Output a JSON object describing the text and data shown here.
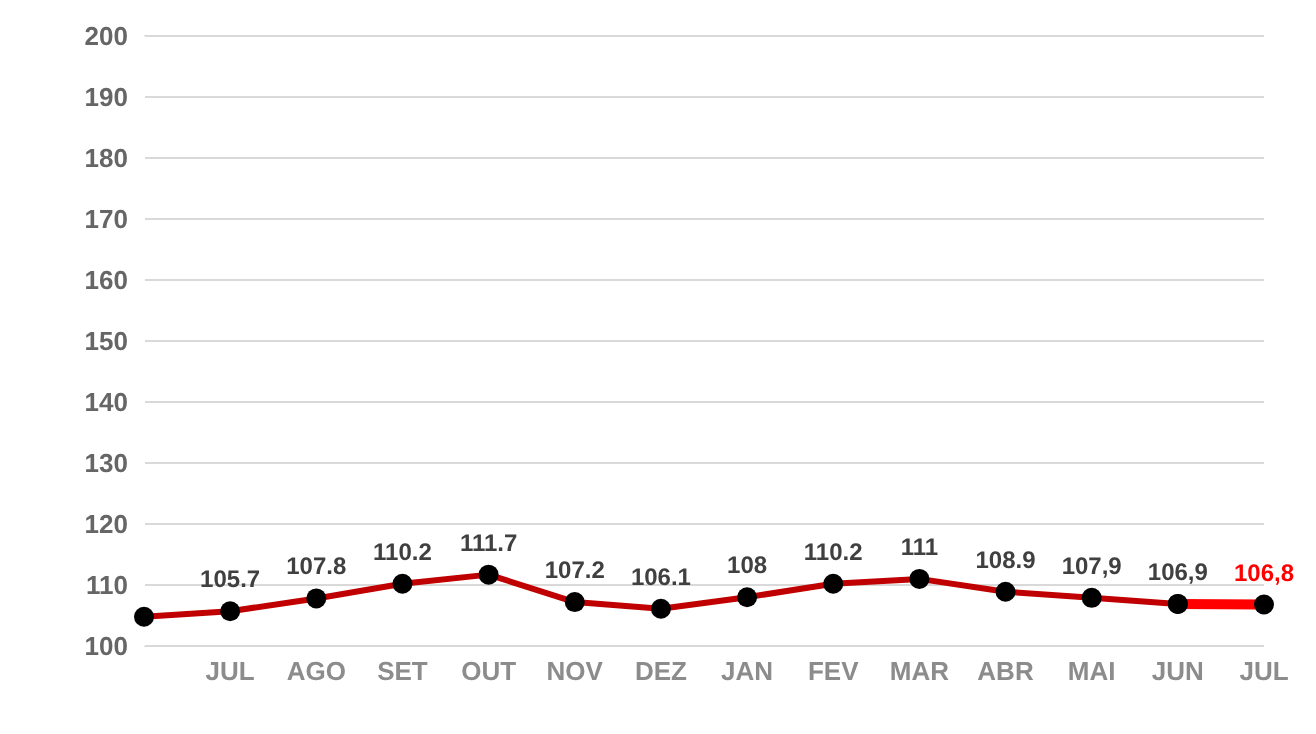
{
  "chart_data": {
    "type": "line",
    "categories": [
      null,
      "JUL",
      "AGO",
      "SET",
      "OUT",
      "NOV",
      "DEZ",
      "JAN",
      "FEV",
      "MAR",
      "ABR",
      "MAI",
      "JUN",
      "JUL"
    ],
    "series": [
      {
        "color": "#c00000",
        "values": [
          104.8,
          105.7,
          107.8,
          110.2,
          111.7,
          107.2,
          106.1,
          108,
          110.2,
          111,
          108.9,
          107.9,
          106.9,
          null
        ],
        "value_labels": [
          null,
          "105.7",
          "107.8",
          "110.2",
          "111.7",
          "107.2",
          "106.1",
          "108",
          "110.2",
          "111",
          "108.9",
          "107,9",
          "106,9",
          null
        ]
      },
      {
        "color": "#ff0000",
        "values": [
          null,
          null,
          null,
          null,
          null,
          null,
          null,
          null,
          null,
          null,
          null,
          null,
          106.9,
          106.8
        ],
        "value_labels": [
          null,
          null,
          null,
          null,
          null,
          null,
          null,
          null,
          null,
          null,
          null,
          null,
          null,
          "106,8"
        ]
      }
    ],
    "ylim": [
      100,
      200
    ],
    "yticks": [
      100,
      110,
      120,
      130,
      140,
      150,
      160,
      170,
      180,
      190,
      200
    ],
    "grid": "y",
    "marker": "circle",
    "line_style": "solid"
  }
}
